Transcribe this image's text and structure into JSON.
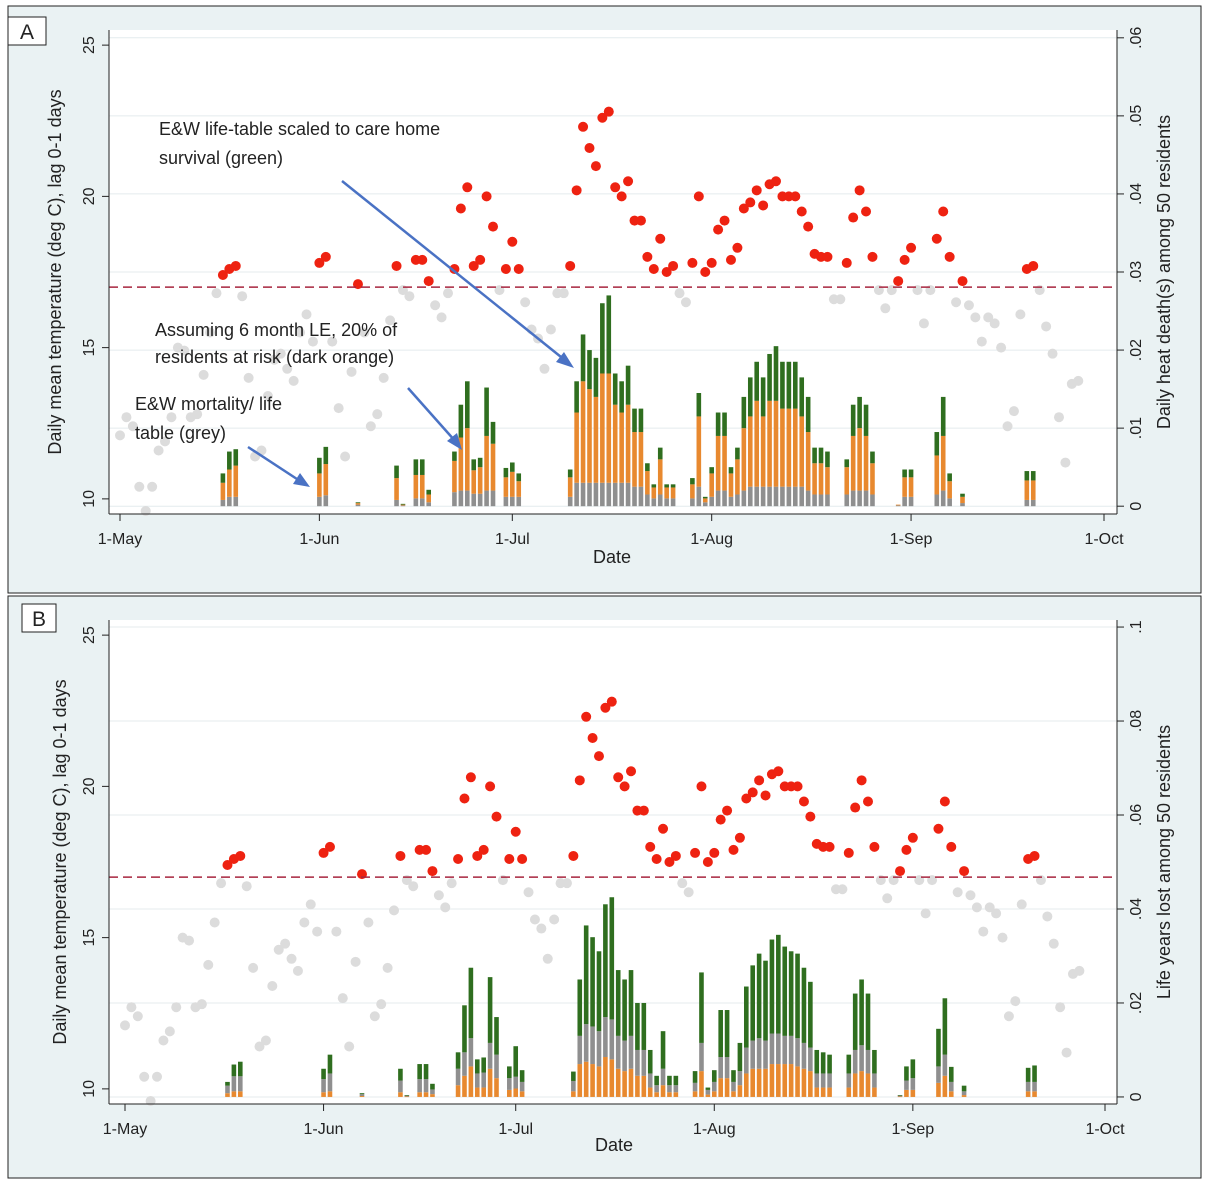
{
  "colors": {
    "panel_bg": "#eaf2f3",
    "plot_bg": "#ffffff",
    "hot": "#ee2211",
    "cool": "#dcdcdc",
    "threshold": "#a8253f",
    "green": "#2f6e1f",
    "orange": "#e8892f",
    "grey": "#8f8f8f",
    "arrow": "#4a72c4",
    "grid": "#e4ebee"
  },
  "chart_data": [
    {
      "type": "bar",
      "panel_label": "A",
      "ylabel": "Daily mean temperature (deg C), lag 0-1 days",
      "y2label": "Daily heat death(s) among 50 residents",
      "xlabel": "Date",
      "xticks": [
        "1-May",
        "1-Jun",
        "1-Jul",
        "1-Aug",
        "1-Sep",
        "1-Oct"
      ],
      "ylim": [
        9.5,
        25.5
      ],
      "yticks": [
        "10",
        "15",
        "20",
        "25"
      ],
      "y2lim": [
        -0.001,
        0.061
      ],
      "y2ticks": [
        "0",
        ".01",
        ".02",
        ".03",
        ".04",
        ".05",
        ".06"
      ],
      "threshold": 17,
      "annotations": [
        "E&W life-table scaled to care home survival (green)",
        "Assuming 6 month LE, 20% of residents at risk (dark orange)",
        "E&W mortality/ life table (grey)"
      ],
      "series": [
        {
          "name": "E&W life-table scaled to care home survival (green)",
          "color": "#2f6e1f"
        },
        {
          "name": "Assuming 6 month LE, 20% of residents at risk (dark orange)",
          "color": "#e8892f"
        },
        {
          "name": "E&W mortality/ life table (grey)",
          "color": "#8f8f8f"
        }
      ],
      "stack_order": [
        "grey",
        "orange",
        "green"
      ]
    },
    {
      "type": "bar",
      "panel_label": "B",
      "ylabel": "Daily mean temperature (deg C), lag 0-1 days",
      "y2label": "Life years lost among 50 residents",
      "xlabel": "Date",
      "xticks": [
        "1-May",
        "1-Jun",
        "1-Jul",
        "1-Aug",
        "1-Sep",
        "1-Oct"
      ],
      "ylim": [
        9.5,
        25.5
      ],
      "yticks": [
        "10",
        "15",
        "20",
        "25"
      ],
      "y2lim": [
        -0.0015,
        0.1015
      ],
      "y2ticks": [
        "0",
        ".02",
        ".04",
        ".06",
        ".08",
        ".1"
      ],
      "threshold": 17,
      "stack_order": [
        "orange",
        "grey",
        "green"
      ]
    }
  ],
  "days": [
    {
      "day": 0,
      "temp": 12.1
    },
    {
      "day": 1,
      "temp": 12.7
    },
    {
      "day": 2,
      "temp": 12.4
    },
    {
      "day": 3,
      "temp": 10.4
    },
    {
      "day": 4,
      "temp": 9.6
    },
    {
      "day": 5,
      "temp": 10.4
    },
    {
      "day": 6,
      "temp": 11.6
    },
    {
      "day": 7,
      "temp": 11.9
    },
    {
      "day": 8,
      "temp": 12.7
    },
    {
      "day": 9,
      "temp": 15.0
    },
    {
      "day": 10,
      "temp": 14.9
    },
    {
      "day": 11,
      "temp": 12.7
    },
    {
      "day": 12,
      "temp": 12.8
    },
    {
      "day": 13,
      "temp": 14.1
    },
    {
      "day": 14,
      "temp": 15.5
    },
    {
      "day": 15,
      "temp": 16.8
    },
    {
      "day": 16,
      "temp": 17.4,
      "a": [
        0.0008,
        0.0022,
        0.0012
      ],
      "b": [
        0.0016,
        0.0008,
        0.0008
      ]
    },
    {
      "day": 17,
      "temp": 17.6,
      "a": [
        0.0012,
        0.0035,
        0.0023
      ],
      "b": [
        0.0032,
        0.0012,
        0.0025
      ]
    },
    {
      "day": 18,
      "temp": 17.7,
      "a": [
        0.0012,
        0.004,
        0.0021
      ],
      "b": [
        0.0032,
        0.0012,
        0.0031
      ]
    },
    {
      "day": 19,
      "temp": 16.7
    },
    {
      "day": 20,
      "temp": 14.0
    },
    {
      "day": 21,
      "temp": 11.4
    },
    {
      "day": 22,
      "temp": 11.6
    },
    {
      "day": 23,
      "temp": 13.4
    },
    {
      "day": 24,
      "temp": 14.6
    },
    {
      "day": 25,
      "temp": 14.8
    },
    {
      "day": 26,
      "temp": 14.3
    },
    {
      "day": 27,
      "temp": 13.9
    },
    {
      "day": 28,
      "temp": 15.5
    },
    {
      "day": 29,
      "temp": 16.1
    },
    {
      "day": 30,
      "temp": 15.2
    },
    {
      "day": 31,
      "temp": 17.8,
      "a": [
        0.0012,
        0.003,
        0.002
      ],
      "b": [
        0.0028,
        0.001,
        0.0022
      ]
    },
    {
      "day": 32,
      "temp": 18.0,
      "a": [
        0.0014,
        0.004,
        0.0022
      ],
      "b": [
        0.0038,
        0.0012,
        0.004
      ]
    },
    {
      "day": 33,
      "temp": 15.2
    },
    {
      "day": 34,
      "temp": 13.0
    },
    {
      "day": 35,
      "temp": 11.4
    },
    {
      "day": 36,
      "temp": 14.2
    },
    {
      "day": 37,
      "temp": 17.1,
      "a": [
        0.0002,
        0.0002,
        0.0001
      ],
      "b": [
        0.0004,
        0.0002,
        0.0002
      ]
    },
    {
      "day": 38,
      "temp": 15.5
    },
    {
      "day": 39,
      "temp": 12.4
    },
    {
      "day": 40,
      "temp": 12.8
    },
    {
      "day": 41,
      "temp": 14.0
    },
    {
      "day": 42,
      "temp": 15.9
    },
    {
      "day": 43,
      "temp": 17.7,
      "a": [
        0.0008,
        0.0028,
        0.0016
      ],
      "b": [
        0.0025,
        0.001,
        0.0025
      ]
    },
    {
      "day": 44,
      "temp": 16.9,
      "a": [
        0.0001,
        0.0001,
        0.0001
      ],
      "b": [
        0.0002,
        0.0001,
        0.0001
      ]
    },
    {
      "day": 45,
      "temp": 16.7
    },
    {
      "day": 46,
      "temp": 17.9,
      "a": [
        0.001,
        0.003,
        0.002
      ],
      "b": [
        0.0028,
        0.001,
        0.0032
      ]
    },
    {
      "day": 47,
      "temp": 17.9,
      "a": [
        0.001,
        0.003,
        0.002
      ],
      "b": [
        0.0028,
        0.001,
        0.0032
      ]
    },
    {
      "day": 48,
      "temp": 17.2,
      "a": [
        0.0005,
        0.001,
        0.0006
      ],
      "b": [
        0.001,
        0.0006,
        0.0012
      ]
    },
    {
      "day": 49,
      "temp": 16.4
    },
    {
      "day": 50,
      "temp": 16.0
    },
    {
      "day": 51,
      "temp": 16.8
    },
    {
      "day": 52,
      "temp": 17.6,
      "a": [
        0.0018,
        0.004,
        0.0012
      ],
      "b": [
        0.0035,
        0.0025,
        0.0035
      ]
    },
    {
      "day": 53,
      "temp": 19.6,
      "a": [
        0.002,
        0.0068,
        0.0042
      ],
      "b": [
        0.005,
        0.0045,
        0.01
      ]
    },
    {
      "day": 54,
      "temp": 20.3,
      "a": [
        0.002,
        0.008,
        0.006
      ],
      "b": [
        0.006,
        0.0065,
        0.015
      ]
    },
    {
      "day": 55,
      "temp": 17.7,
      "a": [
        0.0016,
        0.003,
        0.0014
      ],
      "b": [
        0.003,
        0.002,
        0.003
      ]
    },
    {
      "day": 56,
      "temp": 17.9,
      "a": [
        0.0016,
        0.0034,
        0.0012
      ],
      "b": [
        0.0032,
        0.002,
        0.0032
      ]
    },
    {
      "day": 57,
      "temp": 20.0,
      "a": [
        0.002,
        0.007,
        0.0062
      ],
      "b": [
        0.0055,
        0.006,
        0.014
      ]
    },
    {
      "day": 58,
      "temp": 19.0,
      "a": [
        0.002,
        0.006,
        0.0028
      ],
      "b": [
        0.005,
        0.004,
        0.008
      ]
    },
    {
      "day": 59,
      "temp": 16.9
    },
    {
      "day": 60,
      "temp": 17.6,
      "a": [
        0.0012,
        0.0025,
        0.0012
      ],
      "b": [
        0.0025,
        0.0015,
        0.0025
      ]
    },
    {
      "day": 61,
      "temp": 18.5,
      "a": [
        0.0012,
        0.0032,
        0.0012
      ],
      "b": [
        0.0025,
        0.0018,
        0.0065
      ]
    },
    {
      "day": 62,
      "temp": 17.6,
      "a": [
        0.0012,
        0.002,
        0.001
      ],
      "b": [
        0.002,
        0.0012,
        0.0025
      ]
    },
    {
      "day": 63,
      "temp": 16.5
    },
    {
      "day": 64,
      "temp": 15.6
    },
    {
      "day": 65,
      "temp": 15.3
    },
    {
      "day": 66,
      "temp": 14.3
    },
    {
      "day": 67,
      "temp": 15.6
    },
    {
      "day": 68,
      "temp": 16.8
    },
    {
      "day": 69,
      "temp": 16.8
    },
    {
      "day": 70,
      "temp": 17.7,
      "a": [
        0.0012,
        0.0025,
        0.001
      ],
      "b": [
        0.0022,
        0.0012,
        0.002
      ]
    },
    {
      "day": 71,
      "temp": 20.2,
      "a": [
        0.003,
        0.009,
        0.004
      ],
      "b": [
        0.006,
        0.007,
        0.012
      ]
    },
    {
      "day": 72,
      "temp": 22.3,
      "a": [
        0.003,
        0.013,
        0.006
      ],
      "b": [
        0.008,
        0.0075,
        0.021
      ]
    },
    {
      "day": 73,
      "temp": 21.6,
      "a": [
        0.003,
        0.012,
        0.005
      ],
      "b": [
        0.008,
        0.007,
        0.019
      ]
    },
    {
      "day": 74,
      "temp": 21.0,
      "a": [
        0.003,
        0.011,
        0.005
      ],
      "b": [
        0.0075,
        0.0065,
        0.017
      ]
    },
    {
      "day": 75,
      "temp": 22.6,
      "a": [
        0.003,
        0.014,
        0.009
      ],
      "b": [
        0.0085,
        0.0085,
        0.024
      ]
    },
    {
      "day": 76,
      "temp": 22.8,
      "a": [
        0.003,
        0.014,
        0.01
      ],
      "b": [
        0.0085,
        0.008,
        0.026
      ]
    },
    {
      "day": 77,
      "temp": 20.3,
      "a": [
        0.003,
        0.01,
        0.004
      ],
      "b": [
        0.007,
        0.006,
        0.014
      ]
    },
    {
      "day": 78,
      "temp": 20.0,
      "a": [
        0.003,
        0.009,
        0.004
      ],
      "b": [
        0.0065,
        0.0055,
        0.013
      ]
    },
    {
      "day": 79,
      "temp": 20.5,
      "a": [
        0.003,
        0.01,
        0.005
      ],
      "b": [
        0.007,
        0.006,
        0.014
      ]
    },
    {
      "day": 80,
      "temp": 19.2,
      "a": [
        0.0025,
        0.007,
        0.003
      ],
      "b": [
        0.0055,
        0.0045,
        0.01
      ]
    },
    {
      "day": 81,
      "temp": 19.2,
      "a": [
        0.0025,
        0.007,
        0.003
      ],
      "b": [
        0.0055,
        0.0045,
        0.01
      ]
    },
    {
      "day": 82,
      "temp": 18.0,
      "a": [
        0.0015,
        0.003,
        0.001
      ],
      "b": [
        0.003,
        0.002,
        0.005
      ]
    },
    {
      "day": 83,
      "temp": 17.6,
      "a": [
        0.001,
        0.0014,
        0.0004
      ],
      "b": [
        0.0015,
        0.001,
        0.002
      ]
    },
    {
      "day": 84,
      "temp": 18.6,
      "a": [
        0.0015,
        0.0045,
        0.0015
      ],
      "b": [
        0.0035,
        0.0025,
        0.008
      ]
    },
    {
      "day": 85,
      "temp": 17.5,
      "a": [
        0.001,
        0.0014,
        0.0004
      ],
      "b": [
        0.0015,
        0.001,
        0.002
      ]
    },
    {
      "day": 86,
      "temp": 17.7,
      "a": [
        0.001,
        0.0014,
        0.0004
      ],
      "b": [
        0.0015,
        0.001,
        0.002
      ]
    },
    {
      "day": 87,
      "temp": 16.8
    },
    {
      "day": 88,
      "temp": 16.5
    },
    {
      "day": 89,
      "temp": 17.8,
      "a": [
        0.001,
        0.0018,
        0.0008
      ],
      "b": [
        0.0018,
        0.0012,
        0.0025
      ]
    },
    {
      "day": 90,
      "temp": 20.0,
      "a": [
        0.0025,
        0.009,
        0.003
      ],
      "b": [
        0.006,
        0.0055,
        0.015
      ]
    },
    {
      "day": 91,
      "temp": 17.5,
      "a": [
        0.0005,
        0.0005,
        0.0002
      ],
      "b": [
        0.001,
        0.0005,
        0.0005
      ]
    },
    {
      "day": 92,
      "temp": 17.8,
      "a": [
        0.0012,
        0.003,
        0.0008
      ],
      "b": [
        0.002,
        0.0012,
        0.0025
      ]
    },
    {
      "day": 93,
      "temp": 18.9,
      "a": [
        0.002,
        0.007,
        0.003
      ],
      "b": [
        0.0045,
        0.004,
        0.01
      ]
    },
    {
      "day": 94,
      "temp": 19.2,
      "a": [
        0.002,
        0.007,
        0.003
      ],
      "b": [
        0.0045,
        0.004,
        0.01
      ]
    },
    {
      "day": 95,
      "temp": 17.9,
      "a": [
        0.0012,
        0.003,
        0.0008
      ],
      "b": [
        0.002,
        0.0012,
        0.0025
      ]
    },
    {
      "day": 96,
      "temp": 18.3,
      "a": [
        0.0015,
        0.0045,
        0.0015
      ],
      "b": [
        0.003,
        0.0025,
        0.006
      ]
    },
    {
      "day": 97,
      "temp": 19.6,
      "a": [
        0.002,
        0.008,
        0.004
      ],
      "b": [
        0.0055,
        0.005,
        0.013
      ]
    },
    {
      "day": 98,
      "temp": 19.8,
      "a": [
        0.0025,
        0.009,
        0.005
      ],
      "b": [
        0.006,
        0.006,
        0.016
      ]
    },
    {
      "day": 99,
      "temp": 20.2,
      "a": [
        0.0025,
        0.011,
        0.005
      ],
      "b": [
        0.0065,
        0.006,
        0.018
      ]
    },
    {
      "day": 100,
      "temp": 19.7,
      "a": [
        0.0025,
        0.009,
        0.005
      ],
      "b": [
        0.006,
        0.006,
        0.017
      ]
    },
    {
      "day": 101,
      "temp": 20.4,
      "a": [
        0.0025,
        0.011,
        0.006
      ],
      "b": [
        0.0065,
        0.007,
        0.02
      ]
    },
    {
      "day": 102,
      "temp": 20.5,
      "a": [
        0.0025,
        0.011,
        0.007
      ],
      "b": [
        0.0065,
        0.007,
        0.021
      ]
    },
    {
      "day": 103,
      "temp": 20.0,
      "a": [
        0.0025,
        0.01,
        0.006
      ],
      "b": [
        0.006,
        0.007,
        0.019
      ]
    },
    {
      "day": 104,
      "temp": 20.0,
      "a": [
        0.0025,
        0.01,
        0.006
      ],
      "b": [
        0.006,
        0.007,
        0.018
      ]
    },
    {
      "day": 105,
      "temp": 20.0,
      "a": [
        0.0025,
        0.01,
        0.006
      ],
      "b": [
        0.006,
        0.0065,
        0.018
      ]
    },
    {
      "day": 106,
      "temp": 19.5,
      "a": [
        0.0025,
        0.009,
        0.005
      ],
      "b": [
        0.0055,
        0.006,
        0.016
      ]
    },
    {
      "day": 107,
      "temp": 19.0,
      "a": [
        0.002,
        0.0075,
        0.0045
      ],
      "b": [
        0.005,
        0.0055,
        0.014
      ]
    },
    {
      "day": 108,
      "temp": 18.1,
      "a": [
        0.0015,
        0.004,
        0.002
      ],
      "b": [
        0.003,
        0.002,
        0.005
      ]
    },
    {
      "day": 109,
      "temp": 18.0,
      "a": [
        0.0015,
        0.004,
        0.002
      ],
      "b": [
        0.003,
        0.002,
        0.0045
      ]
    },
    {
      "day": 110,
      "temp": 18.0,
      "a": [
        0.0015,
        0.0035,
        0.002
      ],
      "b": [
        0.003,
        0.002,
        0.004
      ]
    },
    {
      "day": 111,
      "temp": 16.6
    },
    {
      "day": 112,
      "temp": 16.6
    },
    {
      "day": 113,
      "temp": 17.8,
      "a": [
        0.0015,
        0.0035,
        0.001
      ],
      "b": [
        0.003,
        0.002,
        0.004
      ]
    },
    {
      "day": 114,
      "temp": 19.3,
      "a": [
        0.002,
        0.007,
        0.004
      ],
      "b": [
        0.005,
        0.005,
        0.012
      ]
    },
    {
      "day": 115,
      "temp": 20.2,
      "a": [
        0.002,
        0.008,
        0.004
      ],
      "b": [
        0.0055,
        0.0055,
        0.014
      ]
    },
    {
      "day": 116,
      "temp": 19.5,
      "a": [
        0.002,
        0.007,
        0.004
      ],
      "b": [
        0.005,
        0.005,
        0.012
      ]
    },
    {
      "day": 117,
      "temp": 18.0,
      "a": [
        0.0015,
        0.004,
        0.0015
      ],
      "b": [
        0.003,
        0.002,
        0.005
      ]
    },
    {
      "day": 118,
      "temp": 16.9
    },
    {
      "day": 119,
      "temp": 16.3
    },
    {
      "day": 120,
      "temp": 16.9
    },
    {
      "day": 121,
      "temp": 17.2,
      "a": [
        0.0001,
        0.0001,
        0.0
      ],
      "b": [
        0.0002,
        0.0001,
        0.0001
      ]
    },
    {
      "day": 122,
      "temp": 17.9,
      "a": [
        0.0012,
        0.0025,
        0.001
      ],
      "b": [
        0.002,
        0.0015,
        0.003
      ]
    },
    {
      "day": 123,
      "temp": 18.3,
      "a": [
        0.0012,
        0.0025,
        0.001
      ],
      "b": [
        0.0025,
        0.0015,
        0.004
      ]
    },
    {
      "day": 124,
      "temp": 16.9
    },
    {
      "day": 125,
      "temp": 15.8
    },
    {
      "day": 126,
      "temp": 16.9
    },
    {
      "day": 127,
      "temp": 18.6,
      "a": [
        0.0015,
        0.005,
        0.003
      ],
      "b": [
        0.0035,
        0.003,
        0.008
      ]
    },
    {
      "day": 128,
      "temp": 19.5,
      "a": [
        0.002,
        0.007,
        0.005
      ],
      "b": [
        0.0045,
        0.0045,
        0.012
      ]
    },
    {
      "day": 129,
      "temp": 18.0,
      "a": [
        0.001,
        0.0022,
        0.001
      ],
      "b": [
        0.002,
        0.0012,
        0.0032
      ]
    },
    {
      "day": 130,
      "temp": 16.5
    },
    {
      "day": 131,
      "temp": 17.2,
      "a": [
        0.0004,
        0.0008,
        0.0004
      ],
      "b": [
        0.0008,
        0.0004,
        0.0012
      ]
    },
    {
      "day": 132,
      "temp": 16.4
    },
    {
      "day": 133,
      "temp": 16.0
    },
    {
      "day": 134,
      "temp": 15.2
    },
    {
      "day": 135,
      "temp": 16.0
    },
    {
      "day": 136,
      "temp": 15.8
    },
    {
      "day": 137,
      "temp": 15.0
    },
    {
      "day": 138,
      "temp": 12.4
    },
    {
      "day": 139,
      "temp": 12.9
    },
    {
      "day": 140,
      "temp": 16.1
    },
    {
      "day": 141,
      "temp": 17.6,
      "a": [
        0.0008,
        0.0025,
        0.0012
      ],
      "b": [
        0.002,
        0.0012,
        0.003
      ]
    },
    {
      "day": 142,
      "temp": 17.7,
      "a": [
        0.0008,
        0.0025,
        0.0012
      ],
      "b": [
        0.002,
        0.0012,
        0.0035
      ]
    },
    {
      "day": 143,
      "temp": 16.9
    },
    {
      "day": 144,
      "temp": 15.7
    },
    {
      "day": 145,
      "temp": 14.8
    },
    {
      "day": 146,
      "temp": 12.7
    },
    {
      "day": 147,
      "temp": 11.2
    },
    {
      "day": 148,
      "temp": 13.8
    },
    {
      "day": 149,
      "temp": 13.9
    }
  ]
}
